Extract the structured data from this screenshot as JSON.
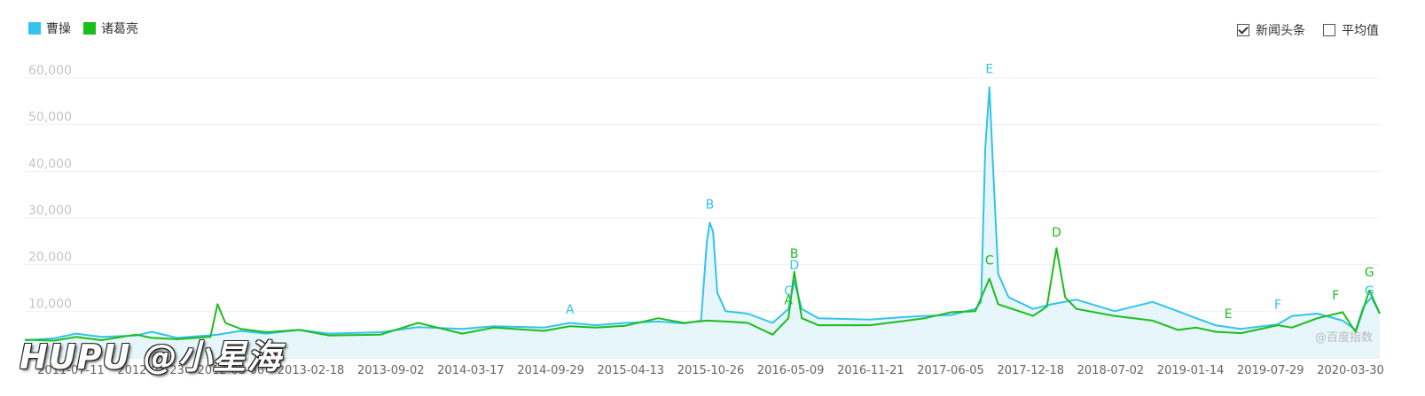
{
  "legend": {
    "series_a": {
      "label": "曹操",
      "color": "#33c3ec"
    },
    "series_b": {
      "label": "诸葛亮",
      "color": "#1bbd1b"
    }
  },
  "toggles": {
    "news": {
      "label": "新闻头条",
      "checked": true
    },
    "average": {
      "label": "平均值",
      "checked": false
    }
  },
  "watermark_text": "@百度指数",
  "overlay_text": "HUPU @小星海",
  "chart_data": {
    "type": "line",
    "ylim": [
      0,
      60000
    ],
    "y_ticks": [
      10000,
      20000,
      30000,
      40000,
      50000,
      60000
    ],
    "y_tick_labels": [
      "10,000",
      "20,000",
      "30,000",
      "40,000",
      "50,000",
      "60,000"
    ],
    "x_range": [
      "2011-05-01",
      "2020-03-30"
    ],
    "x_ticks": [
      "2011-07-11",
      "2012-01-23",
      "2012-08-06",
      "2013-02-18",
      "2013-09-02",
      "2014-03-17",
      "2014-09-29",
      "2015-04-13",
      "2015-10-26",
      "2016-05-09",
      "2016-11-21",
      "2017-06-05",
      "2017-12-18",
      "2018-07-02",
      "2019-01-14",
      "2019-07-29",
      "2020-03-30"
    ],
    "grid": true,
    "legend_position": "top-left",
    "series": [
      {
        "name": "曹操",
        "color": "#33c3ec",
        "area": true,
        "points": [
          [
            "2011-05-01",
            3800
          ],
          [
            "2011-07-11",
            4200
          ],
          [
            "2011-09-01",
            5200
          ],
          [
            "2011-11-01",
            4500
          ],
          [
            "2012-01-23",
            4800
          ],
          [
            "2012-03-01",
            5600
          ],
          [
            "2012-05-01",
            4300
          ],
          [
            "2012-08-06",
            5000
          ],
          [
            "2012-10-01",
            5800
          ],
          [
            "2012-12-01",
            5200
          ],
          [
            "2013-02-18",
            6000
          ],
          [
            "2013-05-01",
            5200
          ],
          [
            "2013-09-02",
            5500
          ],
          [
            "2013-12-01",
            6600
          ],
          [
            "2014-03-17",
            6200
          ],
          [
            "2014-06-01",
            6800
          ],
          [
            "2014-09-29",
            6500
          ],
          [
            "2014-12-01",
            7500
          ],
          [
            "2015-02-01",
            7000
          ],
          [
            "2015-04-13",
            7500
          ],
          [
            "2015-07-01",
            7800
          ],
          [
            "2015-09-01",
            7400
          ],
          [
            "2015-10-12",
            8000
          ],
          [
            "2015-10-26",
            25000
          ],
          [
            "2015-11-02",
            29000
          ],
          [
            "2015-11-10",
            27000
          ],
          [
            "2015-11-20",
            14000
          ],
          [
            "2015-12-10",
            10000
          ],
          [
            "2016-02-01",
            9500
          ],
          [
            "2016-04-01",
            7500
          ],
          [
            "2016-05-09",
            10500
          ],
          [
            "2016-05-23",
            16500
          ],
          [
            "2016-06-10",
            10500
          ],
          [
            "2016-07-20",
            8500
          ],
          [
            "2016-11-21",
            8200
          ],
          [
            "2017-02-01",
            8700
          ],
          [
            "2017-04-01",
            9000
          ],
          [
            "2017-06-05",
            9200
          ],
          [
            "2017-08-01",
            10500
          ],
          [
            "2017-08-15",
            12000
          ],
          [
            "2017-08-25",
            45000
          ],
          [
            "2017-09-04",
            58000
          ],
          [
            "2017-09-12",
            42000
          ],
          [
            "2017-09-25",
            18000
          ],
          [
            "2017-10-20",
            13000
          ],
          [
            "2017-12-18",
            10500
          ],
          [
            "2018-02-01",
            11500
          ],
          [
            "2018-04-01",
            12500
          ],
          [
            "2018-07-02",
            10000
          ],
          [
            "2018-10-01",
            12000
          ],
          [
            "2018-12-01",
            10000
          ],
          [
            "2019-01-14",
            8500
          ],
          [
            "2019-03-01",
            7000
          ],
          [
            "2019-05-01",
            6200
          ],
          [
            "2019-07-29",
            7200
          ],
          [
            "2019-09-01",
            9000
          ],
          [
            "2019-11-01",
            9500
          ],
          [
            "2020-01-01",
            8000
          ],
          [
            "2020-02-01",
            6000
          ],
          [
            "2020-02-20",
            11000
          ],
          [
            "2020-03-10",
            13000
          ],
          [
            "2020-03-30",
            9500
          ]
        ]
      },
      {
        "name": "诸葛亮",
        "color": "#1bbd1b",
        "area": false,
        "points": [
          [
            "2011-05-01",
            3900
          ],
          [
            "2011-07-11",
            3700
          ],
          [
            "2011-09-01",
            4500
          ],
          [
            "2011-11-01",
            3800
          ],
          [
            "2012-01-23",
            5000
          ],
          [
            "2012-03-01",
            4300
          ],
          [
            "2012-05-01",
            4000
          ],
          [
            "2012-07-20",
            4500
          ],
          [
            "2012-08-06",
            11500
          ],
          [
            "2012-08-25",
            7500
          ],
          [
            "2012-10-01",
            6200
          ],
          [
            "2012-12-01",
            5500
          ],
          [
            "2013-02-18",
            6000
          ],
          [
            "2013-05-01",
            4800
          ],
          [
            "2013-09-02",
            5000
          ],
          [
            "2013-12-01",
            7500
          ],
          [
            "2014-03-17",
            5200
          ],
          [
            "2014-06-01",
            6500
          ],
          [
            "2014-09-29",
            5800
          ],
          [
            "2014-12-01",
            6800
          ],
          [
            "2015-02-01",
            6500
          ],
          [
            "2015-04-13",
            6900
          ],
          [
            "2015-07-01",
            8500
          ],
          [
            "2015-09-01",
            7500
          ],
          [
            "2015-10-26",
            8000
          ],
          [
            "2015-12-10",
            7800
          ],
          [
            "2016-02-01",
            7500
          ],
          [
            "2016-04-01",
            5000
          ],
          [
            "2016-05-09",
            8500
          ],
          [
            "2016-05-23",
            18500
          ],
          [
            "2016-06-10",
            8500
          ],
          [
            "2016-07-20",
            7000
          ],
          [
            "2016-11-21",
            7000
          ],
          [
            "2017-02-01",
            7800
          ],
          [
            "2017-04-01",
            8500
          ],
          [
            "2017-06-05",
            9800
          ],
          [
            "2017-08-01",
            10000
          ],
          [
            "2017-09-04",
            17000
          ],
          [
            "2017-09-25",
            11500
          ],
          [
            "2017-12-18",
            9000
          ],
          [
            "2018-01-20",
            11000
          ],
          [
            "2018-02-12",
            23500
          ],
          [
            "2018-03-05",
            13000
          ],
          [
            "2018-04-01",
            10500
          ],
          [
            "2018-07-02",
            9000
          ],
          [
            "2018-10-01",
            8000
          ],
          [
            "2018-12-01",
            6000
          ],
          [
            "2019-01-14",
            6500
          ],
          [
            "2019-03-01",
            5600
          ],
          [
            "2019-05-01",
            5300
          ],
          [
            "2019-07-29",
            7000
          ],
          [
            "2019-09-01",
            6500
          ],
          [
            "2019-11-01",
            8500
          ],
          [
            "2020-01-01",
            9800
          ],
          [
            "2020-02-01",
            5500
          ],
          [
            "2020-03-05",
            14500
          ],
          [
            "2020-03-30",
            9500
          ]
        ]
      }
    ],
    "annotations": [
      {
        "label": "A",
        "series": "曹操",
        "date": "2014-12-01",
        "value": 9500
      },
      {
        "label": "B",
        "series": "曹操",
        "date": "2015-11-02",
        "value": 32000
      },
      {
        "label": "C",
        "series": "曹操",
        "date": "2016-05-09",
        "value": 13500
      },
      {
        "label": "D",
        "series": "曹操",
        "date": "2016-05-23",
        "value": 19000
      },
      {
        "label": "E",
        "series": "曹操",
        "date": "2017-09-04",
        "value": 61000
      },
      {
        "label": "F",
        "series": "曹操",
        "date": "2019-07-29",
        "value": 10500
      },
      {
        "label": "G",
        "series": "曹操",
        "date": "2020-03-05",
        "value": 13500
      },
      {
        "label": "A",
        "series": "诸葛亮",
        "date": "2016-05-09",
        "value": 11500
      },
      {
        "label": "B",
        "series": "诸葛亮",
        "date": "2016-05-23",
        "value": 21500
      },
      {
        "label": "C",
        "series": "诸葛亮",
        "date": "2017-09-04",
        "value": 20000
      },
      {
        "label": "D",
        "series": "诸葛亮",
        "date": "2018-02-12",
        "value": 26000
      },
      {
        "label": "E",
        "series": "诸葛亮",
        "date": "2019-04-01",
        "value": 8500
      },
      {
        "label": "F",
        "series": "诸葛亮",
        "date": "2019-12-15",
        "value": 12500
      },
      {
        "label": "G",
        "series": "诸葛亮",
        "date": "2020-03-05",
        "value": 17500
      }
    ]
  }
}
